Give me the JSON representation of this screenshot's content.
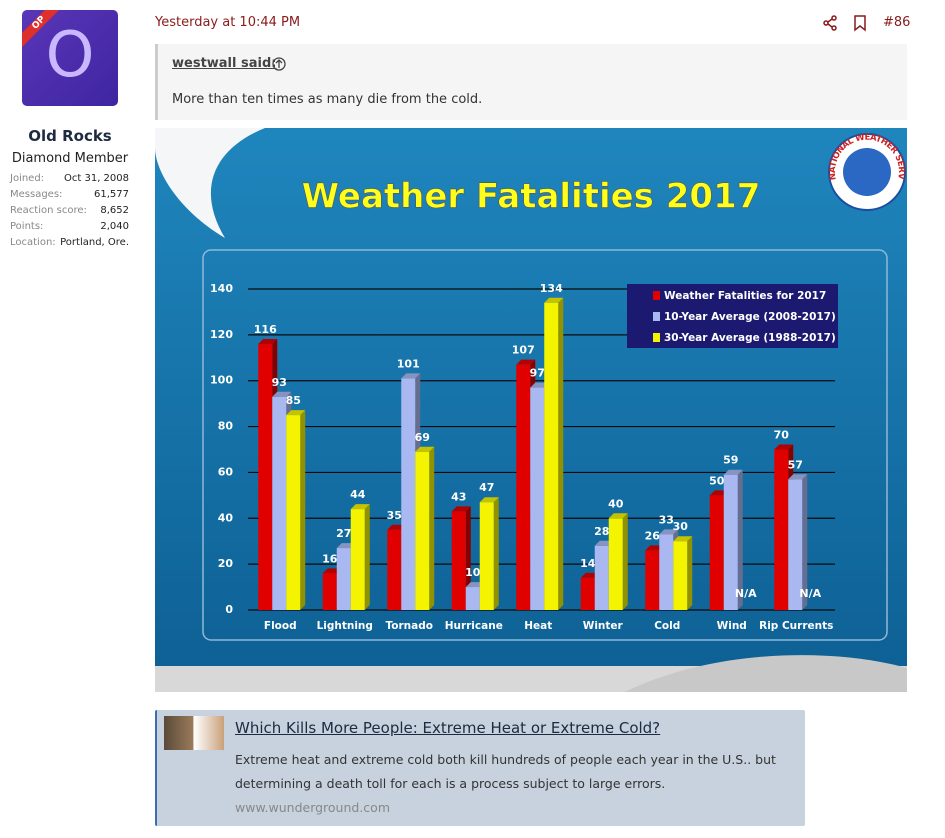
{
  "user": {
    "badge": "OP",
    "avatar_letter": "O",
    "name": "Old Rocks",
    "title": "Diamond Member",
    "stats": [
      {
        "label": "Joined:",
        "value": "Oct 31, 2008"
      },
      {
        "label": "Messages:",
        "value": "61,577"
      },
      {
        "label": "Reaction score:",
        "value": "8,652"
      },
      {
        "label": "Points:",
        "value": "2,040"
      },
      {
        "label": "Location:",
        "value": "Portland, Ore."
      }
    ]
  },
  "post": {
    "time": "Yesterday at 10:44 PM",
    "number": "#86",
    "quote_author": "westwall said:",
    "quote_text": "More than ten times as many die from the cold."
  },
  "chart_data": {
    "type": "bar",
    "title": "Weather Fatalities 2017",
    "logo_text": "NATIONAL WEATHER SERVICE",
    "categories": [
      "Flood",
      "Lightning",
      "Tornado",
      "Hurricane",
      "Heat",
      "Winter",
      "Cold",
      "Wind",
      "Rip Currents"
    ],
    "series": [
      {
        "name": "Weather Fatalities for 2017",
        "color": "#e00000",
        "values": [
          116,
          16,
          35,
          43,
          107,
          14,
          26,
          50,
          70
        ]
      },
      {
        "name": "10-Year Average (2008-2017)",
        "color": "#a9b8f0",
        "values": [
          93,
          27,
          101,
          10,
          97,
          28,
          33,
          59,
          57
        ]
      },
      {
        "name": "30-Year Average (1988-2017)",
        "color": "#f4f400",
        "values": [
          85,
          44,
          69,
          47,
          134,
          40,
          30,
          null,
          null
        ],
        "value_labels": [
          "85",
          "44",
          "69",
          "47",
          "134",
          "40",
          "30",
          "N/A",
          "N/A"
        ]
      }
    ],
    "ylim": [
      0,
      140
    ],
    "yticks": [
      0,
      20,
      40,
      60,
      80,
      100,
      120,
      140
    ],
    "grid": true,
    "legend": "upper right"
  },
  "link_preview": {
    "title": "Which Kills More People: Extreme Heat or Extreme Cold?",
    "description_lines": [
      "Extreme heat and extreme cold both kill hundreds of people each year in the U.S.. but",
      "determining a death toll for each is a process subject to large errors."
    ],
    "domain": "www.wunderground.com"
  }
}
